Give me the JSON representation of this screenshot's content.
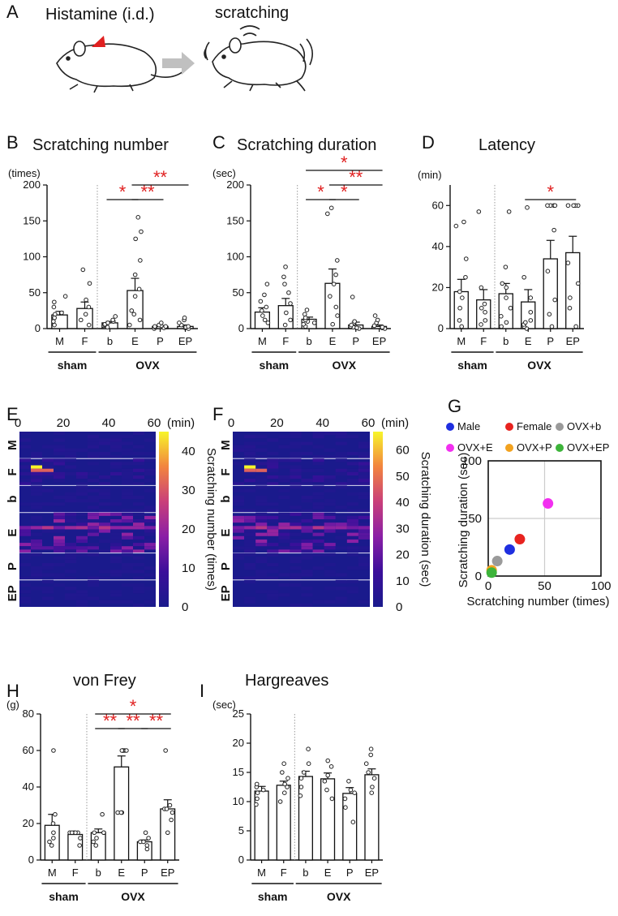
{
  "panels": {
    "A": {
      "label": "A",
      "stimulus": "Histamine (i.d.)",
      "response": "scratching"
    },
    "G": {
      "label": "G"
    }
  },
  "chart_data": [
    {
      "id": "B",
      "label": "B",
      "type": "bar",
      "title": "Scratching number",
      "ylabel": "(times)",
      "ylim": [
        0,
        200
      ],
      "yticks": [
        0,
        50,
        100,
        150,
        200
      ],
      "categories": [
        "M",
        "F",
        "b",
        "E",
        "P",
        "EP"
      ],
      "groups": [
        {
          "name": "sham",
          "from": 0,
          "to": 1
        },
        {
          "name": "OVX",
          "from": 2,
          "to": 5
        }
      ],
      "means": [
        19,
        28,
        8,
        53,
        3,
        3
      ],
      "sem": [
        5,
        9,
        2,
        17,
        1,
        2
      ],
      "points": [
        [
          5,
          10,
          15,
          20,
          22,
          30,
          37,
          45
        ],
        [
          5,
          12,
          20,
          30,
          40,
          63,
          82
        ],
        [
          2,
          4,
          5,
          6,
          8,
          10,
          12,
          17
        ],
        [
          5,
          12,
          20,
          25,
          45,
          55,
          75,
          95,
          125,
          135,
          155
        ],
        [
          0,
          1,
          2,
          3,
          3,
          4,
          5,
          8
        ],
        [
          0,
          1,
          2,
          3,
          5,
          8,
          12,
          15
        ]
      ],
      "sig": [
        {
          "label": "*",
          "from": 2,
          "to": 3,
          "level": 0
        },
        {
          "label": "**",
          "from": 3,
          "to": 4,
          "level": 0
        },
        {
          "label": "**",
          "from": 3,
          "to": 5,
          "level": 1
        }
      ]
    },
    {
      "id": "C",
      "label": "C",
      "type": "bar",
      "title": "Scratching duration",
      "ylabel": "(sec)",
      "ylim": [
        0,
        200
      ],
      "yticks": [
        0,
        50,
        100,
        150,
        200
      ],
      "categories": [
        "M",
        "F",
        "b",
        "E",
        "P",
        "EP"
      ],
      "groups": [
        {
          "name": "sham",
          "from": 0,
          "to": 1
        },
        {
          "name": "OVX",
          "from": 2,
          "to": 5
        }
      ],
      "means": [
        23,
        32,
        13,
        63,
        5,
        3
      ],
      "sem": [
        6,
        10,
        3,
        20,
        4,
        2
      ],
      "points": [
        [
          8,
          12,
          18,
          25,
          30,
          38,
          47,
          62
        ],
        [
          5,
          12,
          22,
          35,
          50,
          62,
          72,
          86
        ],
        [
          3,
          6,
          8,
          10,
          12,
          15,
          20,
          26
        ],
        [
          6,
          18,
          30,
          45,
          62,
          75,
          95,
          160,
          168
        ],
        [
          0,
          1,
          2,
          3,
          5,
          10,
          44
        ],
        [
          0,
          1,
          2,
          4,
          8,
          12,
          18
        ]
      ],
      "sig": [
        {
          "label": "*",
          "from": 2,
          "to": 3,
          "level": 0
        },
        {
          "label": "*",
          "from": 3,
          "to": 4,
          "level": 0
        },
        {
          "label": "**",
          "from": 3,
          "to": 5,
          "level": 1
        },
        {
          "label": "*",
          "from": 2,
          "to": 5,
          "level": 2
        }
      ]
    },
    {
      "id": "D",
      "label": "D",
      "type": "bar",
      "title": "Latency",
      "ylabel": "(min)",
      "ylim": [
        0,
        70
      ],
      "yticks": [
        0,
        20,
        40,
        60
      ],
      "categories": [
        "M",
        "F",
        "b",
        "E",
        "P",
        "EP"
      ],
      "groups": [
        {
          "name": "sham",
          "from": 0,
          "to": 1
        },
        {
          "name": "OVX",
          "from": 2,
          "to": 5
        }
      ],
      "means": [
        18,
        14,
        17,
        13,
        34,
        37
      ],
      "sem": [
        6,
        5,
        5,
        6,
        9,
        8
      ],
      "points": [
        [
          1,
          4,
          10,
          15,
          18,
          25,
          34,
          50,
          52
        ],
        [
          2,
          4,
          8,
          10,
          12,
          20,
          57
        ],
        [
          1,
          3,
          6,
          10,
          15,
          20,
          22,
          30,
          57
        ],
        [
          0,
          1,
          2,
          3,
          4,
          8,
          15,
          25,
          59
        ],
        [
          1,
          7,
          14,
          28,
          48,
          60,
          60,
          60,
          60
        ],
        [
          1,
          10,
          15,
          22,
          32,
          60,
          60,
          60,
          60
        ]
      ],
      "sig": [
        {
          "label": "*",
          "from": 3,
          "to": 5,
          "level": 0
        }
      ]
    },
    {
      "id": "E",
      "label": "E",
      "type": "heatmap",
      "xlabel": "(min)",
      "xticks": [
        0,
        20,
        40,
        60
      ],
      "colorbar_label": "Scratching number (times)",
      "colorbar_ticks": [
        0,
        10,
        20,
        30,
        40
      ],
      "vmax": 45,
      "row_groups": [
        "M",
        "F",
        "b",
        "E",
        "P",
        "EP"
      ]
    },
    {
      "id": "F",
      "label": "F",
      "type": "heatmap",
      "xlabel": "(min)",
      "xticks": [
        0,
        20,
        40,
        60
      ],
      "colorbar_label": "Scratching duration (sec)",
      "colorbar_ticks": [
        0,
        10,
        20,
        30,
        40,
        50,
        60
      ],
      "vmax": 67,
      "row_groups": [
        "M",
        "F",
        "b",
        "E",
        "P",
        "EP"
      ]
    },
    {
      "id": "G",
      "type": "scatter",
      "xlabel": "Scratching number (times)",
      "ylabel": "Scratching duration (sec)",
      "xlim": [
        0,
        100
      ],
      "ylim": [
        0,
        100
      ],
      "xticks": [
        0,
        50,
        100
      ],
      "yticks": [
        0,
        50,
        100
      ],
      "series": [
        {
          "name": "Male",
          "color": "#1f2fe0",
          "x": 19,
          "y": 23
        },
        {
          "name": "Female",
          "color": "#e8231f",
          "x": 28,
          "y": 32
        },
        {
          "name": "OVX+b",
          "color": "#9a9a9a",
          "x": 8,
          "y": 13
        },
        {
          "name": "OVX+E",
          "color": "#f22ff0",
          "x": 53,
          "y": 63
        },
        {
          "name": "OVX+P",
          "color": "#f2a21f",
          "x": 3,
          "y": 5
        },
        {
          "name": "OVX+EP",
          "color": "#3db43a",
          "x": 3,
          "y": 3
        }
      ]
    },
    {
      "id": "H",
      "label": "H",
      "type": "bar",
      "title": "von Frey",
      "ylabel": "(g)",
      "ylim": [
        0,
        80
      ],
      "yticks": [
        0,
        20,
        40,
        60,
        80
      ],
      "categories": [
        "M",
        "F",
        "b",
        "E",
        "P",
        "EP"
      ],
      "groups": [
        {
          "name": "sham",
          "from": 0,
          "to": 1
        },
        {
          "name": "OVX",
          "from": 2,
          "to": 5
        }
      ],
      "means": [
        19,
        14,
        15,
        51,
        10,
        28
      ],
      "sem": [
        6,
        1,
        2,
        6,
        1,
        5
      ],
      "points": [
        [
          8,
          10,
          12,
          15,
          20,
          25,
          60
        ],
        [
          8,
          12,
          15,
          15,
          15,
          15,
          15
        ],
        [
          8,
          10,
          12,
          15,
          15,
          15,
          25
        ],
        [
          26,
          26,
          26,
          60,
          60,
          60,
          60,
          60
        ],
        [
          6,
          8,
          10,
          10,
          12,
          15
        ],
        [
          15,
          22,
          26,
          28,
          28,
          30,
          60
        ]
      ],
      "sig": [
        {
          "label": "**",
          "from": 2,
          "to": 3,
          "level": 0
        },
        {
          "label": "**",
          "from": 3,
          "to": 4,
          "level": 0
        },
        {
          "label": "**",
          "from": 4,
          "to": 5,
          "level": 0
        },
        {
          "label": "*",
          "from": 2,
          "to": 5,
          "level": 1
        }
      ]
    },
    {
      "id": "I",
      "label": "I",
      "type": "bar",
      "title": "Hargreaves",
      "ylabel": "(sec)",
      "ylim": [
        0,
        25
      ],
      "yticks": [
        0,
        5,
        10,
        15,
        20,
        25
      ],
      "categories": [
        "M",
        "F",
        "b",
        "E",
        "P",
        "EP"
      ],
      "groups": [
        {
          "name": "sham",
          "from": 0,
          "to": 1
        },
        {
          "name": "OVX",
          "from": 2,
          "to": 5
        }
      ],
      "means": [
        11.8,
        12.8,
        14.3,
        13.9,
        11.4,
        14.6
      ],
      "sem": [
        0.8,
        0.7,
        0.9,
        1.0,
        1.0,
        1.0
      ],
      "points": [
        [
          9.5,
          10.5,
          11.5,
          12.0,
          12.5,
          13.0
        ],
        [
          10.0,
          11.5,
          12.5,
          13.0,
          14.0,
          15.0,
          16.5
        ],
        [
          11.0,
          12.5,
          14.0,
          15.0,
          16.5,
          19.0
        ],
        [
          10.5,
          12.0,
          13.5,
          14.5,
          16.0,
          17.0
        ],
        [
          6.5,
          9.0,
          10.5,
          11.5,
          12.0,
          13.5
        ],
        [
          11.5,
          12.5,
          14.0,
          15.0,
          16.5,
          18.0,
          19.0
        ]
      ],
      "sig": []
    }
  ]
}
